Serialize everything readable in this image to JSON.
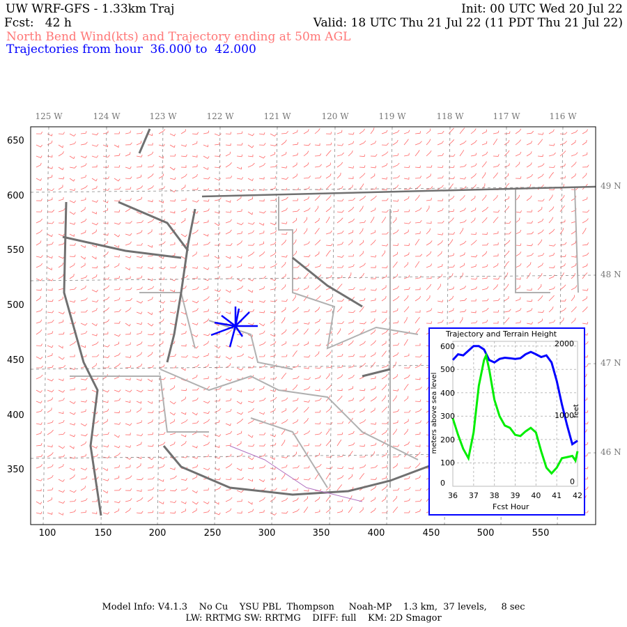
{
  "header": {
    "title": "UW WRF-GFS - 1.33km Traj",
    "init": "Init: 00 UTC Wed 20 Jul 22",
    "fcst": "Fcst:   42 h",
    "valid": "Valid: 18 UTC Thu 21 Jul 22 (11 PDT Thu 21 Jul 22)",
    "subtitle": "North Bend Wind(kts) and Trajectory ending at 50m AGL",
    "traj_range": "Trajectories from hour  36.000 to  42.000"
  },
  "map": {
    "x_ticks": [
      "100",
      "150",
      "200",
      "250",
      "300",
      "350",
      "400",
      "450",
      "500",
      "550"
    ],
    "y_ticks": [
      "650",
      "600",
      "550",
      "500",
      "450",
      "400",
      "350"
    ],
    "lon_labels": [
      "125 W",
      "124 W",
      "123 W",
      "122 W",
      "121 W",
      "120 W",
      "119 W",
      "118 W",
      "117 W",
      "116 W"
    ],
    "lat_labels": [
      "49 N",
      "48 N",
      "47 N",
      "46 N"
    ],
    "colors": {
      "wind_barbs": "#ff6666",
      "coastline": "#707070",
      "borders": "#b0b0b0",
      "trajectory": "#0000ff",
      "rivers": "#b070c0"
    }
  },
  "chart_data": {
    "type": "line",
    "title": "Trajectory and Terrain Height",
    "xlabel": "Fcst Hour",
    "ylabel": "meters above sea level",
    "ylabel_right": "feet",
    "xlim": [
      36,
      42
    ],
    "ylim": [
      0,
      620
    ],
    "x_ticks": [
      "36",
      "37",
      "38",
      "39",
      "40",
      "41",
      "42"
    ],
    "y_ticks": [
      "0",
      "100",
      "200",
      "300",
      "400",
      "500",
      "600"
    ],
    "y_right_ticks": [
      "0",
      "1000",
      "2000"
    ],
    "grid": true,
    "series": [
      {
        "color": "#0000ff",
        "x": [
          36,
          36.25,
          36.5,
          36.75,
          37,
          37.25,
          37.5,
          37.75,
          38,
          38.25,
          38.5,
          38.75,
          39,
          39.25,
          39.5,
          39.75,
          40,
          40.25,
          40.5,
          40.75,
          41,
          41.25,
          41.5,
          41.75,
          42
        ],
        "y": [
          540,
          565,
          560,
          580,
          600,
          600,
          585,
          540,
          530,
          545,
          550,
          548,
          545,
          548,
          565,
          575,
          565,
          553,
          560,
          530,
          450,
          350,
          260,
          180,
          195
        ]
      },
      {
        "color": "#00ee00",
        "x": [
          36,
          36.25,
          36.5,
          36.75,
          37,
          37.25,
          37.5,
          37.6,
          37.75,
          38,
          38.25,
          38.5,
          38.75,
          39,
          39.25,
          39.5,
          39.75,
          40,
          40.25,
          40.5,
          40.75,
          41,
          41.25,
          41.5,
          41.75,
          41.9,
          42
        ],
        "y": [
          290,
          220,
          160,
          120,
          230,
          430,
          540,
          560,
          500,
          370,
          300,
          260,
          250,
          220,
          215,
          235,
          250,
          230,
          150,
          80,
          55,
          80,
          120,
          125,
          130,
          110,
          150
        ]
      }
    ]
  },
  "footer": {
    "line1": "Model Info: V4.1.3    No Cu    YSU PBL  Thompson     Noah-MP    1.3 km,  37 levels,     8 sec",
    "line2": "LW: RRTMG SW: RRTMG    DIFF: full    KM: 2D Smagor"
  }
}
